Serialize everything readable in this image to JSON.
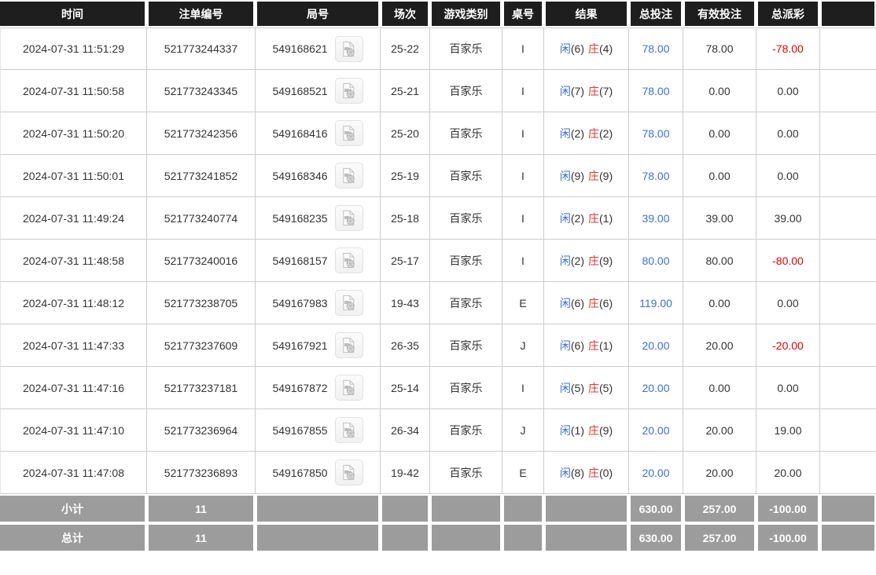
{
  "table": {
    "columns": [
      "时间",
      "注单编号",
      "局号",
      "场次",
      "游戏类别",
      "桌号",
      "结果",
      "总投注",
      "有效投注",
      "总派彩",
      ""
    ],
    "result_labels": {
      "player": "闲",
      "banker": "庄"
    },
    "rows": [
      {
        "time": "2024-07-31 11:51:29",
        "bet_id": "521773244337",
        "round_id": "549168621",
        "session": "25-22",
        "game": "百家乐",
        "table_no": "I",
        "player": "(6)",
        "banker": "(4)",
        "total_bet": "78.00",
        "valid_bet": "78.00",
        "payout": "-78.00"
      },
      {
        "time": "2024-07-31 11:50:58",
        "bet_id": "521773243345",
        "round_id": "549168521",
        "session": "25-21",
        "game": "百家乐",
        "table_no": "I",
        "player": "(7)",
        "banker": "(7)",
        "total_bet": "78.00",
        "valid_bet": "0.00",
        "payout": "0.00"
      },
      {
        "time": "2024-07-31 11:50:20",
        "bet_id": "521773242356",
        "round_id": "549168416",
        "session": "25-20",
        "game": "百家乐",
        "table_no": "I",
        "player": "(2)",
        "banker": "(2)",
        "total_bet": "78.00",
        "valid_bet": "0.00",
        "payout": "0.00"
      },
      {
        "time": "2024-07-31 11:50:01",
        "bet_id": "521773241852",
        "round_id": "549168346",
        "session": "25-19",
        "game": "百家乐",
        "table_no": "I",
        "player": "(9)",
        "banker": "(9)",
        "total_bet": "78.00",
        "valid_bet": "0.00",
        "payout": "0.00"
      },
      {
        "time": "2024-07-31 11:49:24",
        "bet_id": "521773240774",
        "round_id": "549168235",
        "session": "25-18",
        "game": "百家乐",
        "table_no": "I",
        "player": "(2)",
        "banker": "(1)",
        "total_bet": "39.00",
        "valid_bet": "39.00",
        "payout": "39.00"
      },
      {
        "time": "2024-07-31 11:48:58",
        "bet_id": "521773240016",
        "round_id": "549168157",
        "session": "25-17",
        "game": "百家乐",
        "table_no": "I",
        "player": "(2)",
        "banker": "(9)",
        "total_bet": "80.00",
        "valid_bet": "80.00",
        "payout": "-80.00"
      },
      {
        "time": "2024-07-31 11:48:12",
        "bet_id": "521773238705",
        "round_id": "549167983",
        "session": "19-43",
        "game": "百家乐",
        "table_no": "E",
        "player": "(6)",
        "banker": "(6)",
        "total_bet": "119.00",
        "valid_bet": "0.00",
        "payout": "0.00"
      },
      {
        "time": "2024-07-31 11:47:33",
        "bet_id": "521773237609",
        "round_id": "549167921",
        "session": "26-35",
        "game": "百家乐",
        "table_no": "J",
        "player": "(6)",
        "banker": "(1)",
        "total_bet": "20.00",
        "valid_bet": "20.00",
        "payout": "-20.00"
      },
      {
        "time": "2024-07-31 11:47:16",
        "bet_id": "521773237181",
        "round_id": "549167872",
        "session": "25-14",
        "game": "百家乐",
        "table_no": "I",
        "player": "(5)",
        "banker": "(5)",
        "total_bet": "20.00",
        "valid_bet": "0.00",
        "payout": "0.00"
      },
      {
        "time": "2024-07-31 11:47:10",
        "bet_id": "521773236964",
        "round_id": "549167855",
        "session": "26-34",
        "game": "百家乐",
        "table_no": "J",
        "player": "(1)",
        "banker": "(9)",
        "total_bet": "20.00",
        "valid_bet": "20.00",
        "payout": "19.00"
      },
      {
        "time": "2024-07-31 11:47:08",
        "bet_id": "521773236893",
        "round_id": "549167850",
        "session": "19-42",
        "game": "百家乐",
        "table_no": "E",
        "player": "(8)",
        "banker": "(0)",
        "total_bet": "20.00",
        "valid_bet": "20.00",
        "payout": "20.00"
      }
    ],
    "subtotal": {
      "label": "小计",
      "count": "11",
      "total_bet": "630.00",
      "valid_bet": "257.00",
      "payout": "-100.00"
    },
    "total": {
      "label": "总计",
      "count": "11",
      "total_bet": "630.00",
      "valid_bet": "257.00",
      "payout": "-100.00"
    }
  },
  "colors": {
    "header_bg": "#1e1e1e",
    "footer_bg": "#9c9c9c",
    "grid_border": "#cccccc",
    "bet_blue": "#3a6fd8",
    "player_blue": "#3a6fd8",
    "banker_red": "#e03434",
    "negative_red": "#e60000",
    "text": "#333333"
  }
}
